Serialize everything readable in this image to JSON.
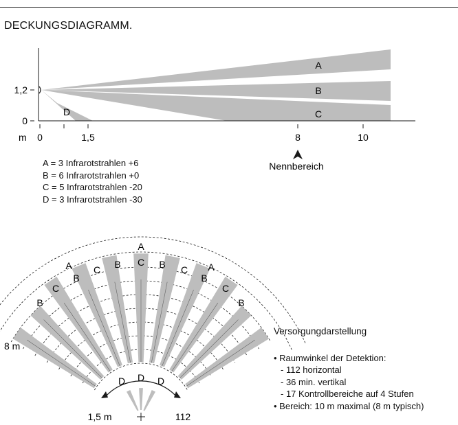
{
  "title": "DECKUNGSDIAGRAMM.",
  "side_chart": {
    "y_tick_labels": [
      "1,2",
      "0"
    ],
    "x_unit": "m",
    "x_tick_labels": [
      "0",
      "1,5",
      "8",
      "10"
    ],
    "zone_labels": [
      "A",
      "B",
      "C",
      "D"
    ],
    "nominal_range_label": "Nennbereich"
  },
  "legend": [
    "A = 3 Infrarotstrahlen +6",
    "B = 6 Infrarotstrahlen +0",
    "C = 5 Infrarotstrahlen -20",
    "D = 3 Infrarotstrahlen -30"
  ],
  "top_view": {
    "radius_label": "8 m",
    "near_radius_label": "1,5 m",
    "angle_label": "112",
    "zone_labels": {
      "A": [
        "A",
        "A",
        "A"
      ],
      "B": [
        "B",
        "B",
        "B",
        "B",
        "B",
        "B"
      ],
      "C": [
        "C",
        "C",
        "C",
        "C",
        "C"
      ],
      "D": [
        "D",
        "D",
        "D"
      ]
    }
  },
  "notes": {
    "heading": "Versorgungdarstellung",
    "detection_heading": "Raumwinkel der Detektion:",
    "detection_items": [
      "112 horizontal",
      "36 min. vertikal",
      "17 Kontrollbereiche auf 4 Stufen"
    ],
    "range_line": "Bereich: 10 m maximal (8 m typisch)"
  },
  "colors": {
    "beam": "#bdbdbd",
    "line": "#1a1a1a"
  }
}
